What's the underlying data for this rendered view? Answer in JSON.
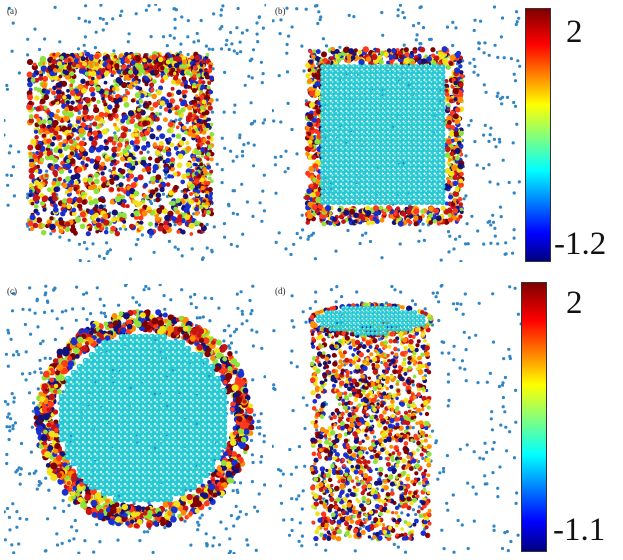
{
  "panels": [
    {
      "id": "pa",
      "label": "(a)",
      "shape": "cube-surface"
    },
    {
      "id": "pb",
      "label": "(b)",
      "shape": "cube-cross-section"
    },
    {
      "id": "pc",
      "label": "(c)",
      "shape": "cylinder-cross-section"
    },
    {
      "id": "pd",
      "label": "(d)",
      "shape": "cylinder-surface"
    }
  ],
  "colorbars": [
    {
      "max": "2",
      "min": "-1.2",
      "colormap": "jet"
    },
    {
      "max": "2",
      "min": "-1.1",
      "colormap": "jet"
    }
  ],
  "colors": {
    "solvent": "#2f86c6",
    "core": "#28c8d2",
    "core_highlight": "#9ff2f5",
    "core_shade": "#1a9ea8",
    "shell": [
      "#7f0000",
      "#c81414",
      "#ff3a1a",
      "#ff8c00",
      "#f2e21a",
      "#8fe23a",
      "#1a2fd2",
      "#12127a"
    ]
  }
}
